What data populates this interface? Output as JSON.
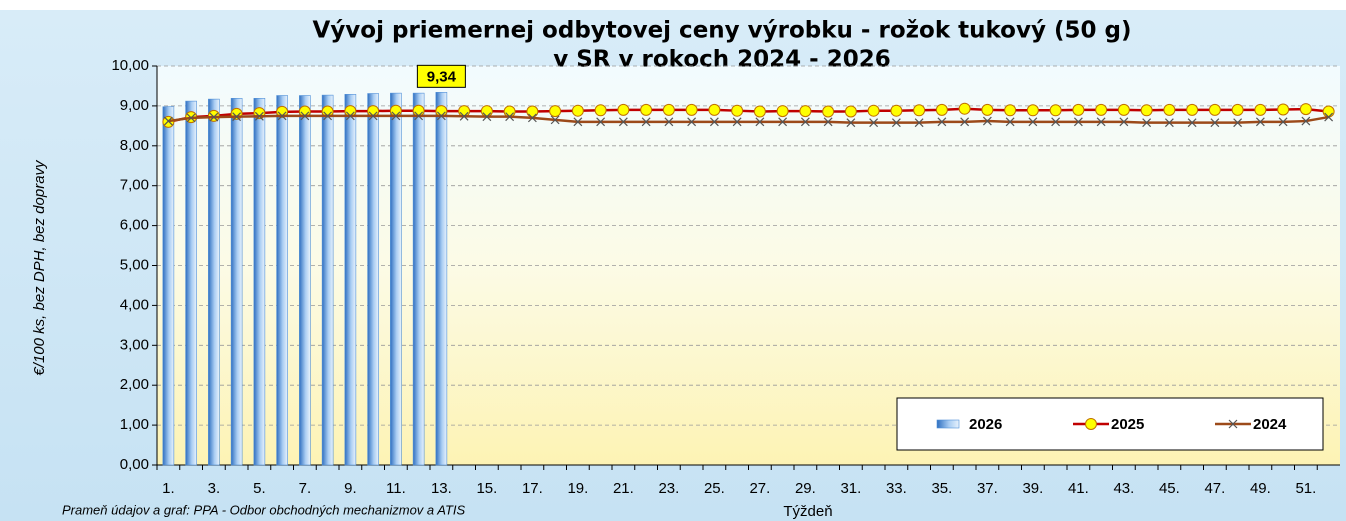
{
  "chart_data": {
    "type": "bar_line",
    "title": [
      "Vývoj priemernej odbytovej ceny výrobku - rožok tukový (50 g)",
      "v SR v rokoch 2024 - 2026"
    ],
    "y_label": "€/100 ks, bez DPH, bez dopravy",
    "x_label": "Týždeň",
    "source": "Prameň údajov a graf: PPA - Odbor obchodných mechanizmov a ATIS",
    "categories": [
      "1.",
      null,
      "3.",
      null,
      "5.",
      null,
      "7.",
      null,
      "9.",
      null,
      "11.",
      null,
      "13.",
      null,
      "15.",
      null,
      "17.",
      null,
      "19.",
      null,
      "21.",
      null,
      "23.",
      null,
      "25.",
      null,
      "27.",
      null,
      "29.",
      null,
      "31.",
      null,
      "33.",
      null,
      "35.",
      null,
      "37.",
      null,
      "39.",
      null,
      "41.",
      null,
      "43.",
      null,
      "45.",
      null,
      "47.",
      null,
      "49.",
      null,
      "51.",
      null
    ],
    "ylim": [
      0,
      10
    ],
    "yticks": [
      {
        "value": 0,
        "label": "0,00"
      },
      {
        "value": 1,
        "label": "1,00"
      },
      {
        "value": 2,
        "label": "2,00"
      },
      {
        "value": 3,
        "label": "3,00"
      },
      {
        "value": 4,
        "label": "4,00"
      },
      {
        "value": 5,
        "label": "5,00"
      },
      {
        "value": 6,
        "label": "6,00"
      },
      {
        "value": 7,
        "label": "7,00"
      },
      {
        "value": 8,
        "label": "8,00"
      },
      {
        "value": 9,
        "label": "9,00"
      },
      {
        "value": 10,
        "label": "10,00"
      }
    ],
    "grid": true,
    "legend": "lower right",
    "series": [
      {
        "name": "2026",
        "kind": "bar",
        "color": "#4f8fd8",
        "values": [
          8.98,
          9.12,
          9.17,
          9.19,
          9.19,
          9.26,
          9.26,
          9.27,
          9.29,
          9.31,
          9.32,
          9.32,
          9.34,
          null,
          null,
          null,
          null,
          null,
          null,
          null,
          null,
          null,
          null,
          null,
          null,
          null,
          null,
          null,
          null,
          null,
          null,
          null,
          null,
          null,
          null,
          null,
          null,
          null,
          null,
          null,
          null,
          null,
          null,
          null,
          null,
          null,
          null,
          null,
          null,
          null,
          null,
          null
        ],
        "value_labels": [
          null,
          null,
          null,
          null,
          null,
          null,
          null,
          null,
          null,
          null,
          null,
          null,
          "9,34",
          null,
          null,
          null,
          null,
          null,
          null,
          null,
          null,
          null,
          null,
          null,
          null,
          null,
          null,
          null,
          null,
          null,
          null,
          null,
          null,
          null,
          null,
          null,
          null,
          null,
          null,
          null,
          null,
          null,
          null,
          null,
          null,
          null,
          null,
          null,
          null,
          null,
          null,
          null
        ]
      },
      {
        "name": "2025",
        "kind": "line",
        "marker": "circle",
        "color": "#c00000",
        "values": [
          8.6,
          8.72,
          8.75,
          8.8,
          8.82,
          8.85,
          8.86,
          8.86,
          8.87,
          8.87,
          8.88,
          8.88,
          8.87,
          8.87,
          8.87,
          8.86,
          8.86,
          8.87,
          8.88,
          8.89,
          8.9,
          8.9,
          8.9,
          8.9,
          8.9,
          8.88,
          8.86,
          8.87,
          8.87,
          8.86,
          8.86,
          8.88,
          8.88,
          8.89,
          8.9,
          8.93,
          8.9,
          8.89,
          8.89,
          8.89,
          8.9,
          8.9,
          8.9,
          8.89,
          8.9,
          8.9,
          8.9,
          8.9,
          8.9,
          8.91,
          8.92,
          8.86
        ]
      },
      {
        "name": "2024",
        "kind": "line",
        "marker": "x",
        "color": "#9c4a1a",
        "values": [
          8.62,
          8.7,
          8.72,
          8.73,
          8.74,
          8.75,
          8.75,
          8.75,
          8.75,
          8.75,
          8.75,
          8.75,
          8.75,
          8.74,
          8.73,
          8.73,
          8.7,
          8.65,
          8.6,
          8.6,
          8.6,
          8.6,
          8.6,
          8.6,
          8.6,
          8.6,
          8.6,
          8.6,
          8.6,
          8.6,
          8.58,
          8.58,
          8.58,
          8.58,
          8.6,
          8.6,
          8.62,
          8.6,
          8.6,
          8.6,
          8.6,
          8.6,
          8.6,
          8.58,
          8.58,
          8.58,
          8.58,
          8.58,
          8.6,
          8.6,
          8.62,
          8.72
        ]
      }
    ]
  }
}
